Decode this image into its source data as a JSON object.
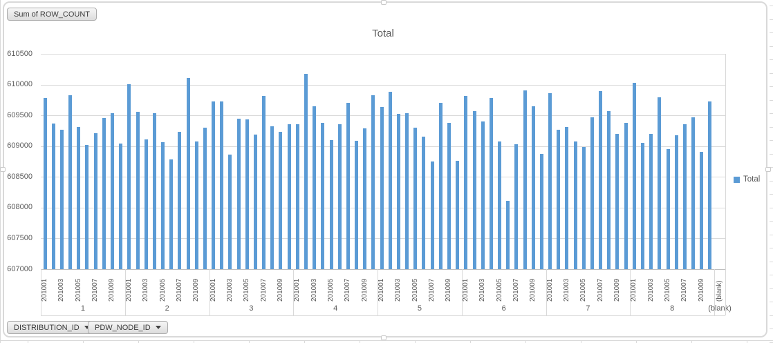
{
  "pivot": {
    "value_button": "Sum of ROW_COUNT",
    "axis_buttons": [
      "DISTRIBUTION_ID",
      "PDW_NODE_ID"
    ],
    "legend_label": "Total"
  },
  "colors": {
    "bar": "#5B9BD5",
    "text": "#595959",
    "gridline": "#D9D9D9",
    "axis_line": "#BFBFBF"
  },
  "chart_data": {
    "type": "bar",
    "title": "Total",
    "series_name": "Total",
    "legend_position": "right",
    "grid": true,
    "bar_color": "#5B9BD5",
    "ylim": [
      607000,
      610500
    ],
    "yticks": [
      607000,
      607500,
      608000,
      608500,
      609000,
      609500,
      610000,
      610500
    ],
    "x_axis_fields": [
      "DISTRIBUTION_ID",
      "PDW_NODE_ID"
    ],
    "categories": [
      "201001",
      "201002",
      "201003",
      "201004",
      "201005",
      "201006",
      "201007",
      "201008",
      "201009",
      "201010"
    ],
    "shown_category_ticks": [
      "201001",
      "201003",
      "201005",
      "201007",
      "201009"
    ],
    "groups": [
      {
        "label": "1",
        "values": [
          609780,
          609365,
          609270,
          609830,
          609310,
          609020,
          609210,
          609455,
          609540,
          609040
        ]
      },
      {
        "label": "2",
        "values": [
          610010,
          609555,
          609105,
          609535,
          609065,
          608780,
          609230,
          610105,
          609070,
          609295
        ]
      },
      {
        "label": "3",
        "values": [
          609730,
          609730,
          608865,
          609445,
          609430,
          609185,
          609820,
          609325,
          609230,
          609355
        ]
      },
      {
        "label": "4",
        "values": [
          609360,
          610175,
          609650,
          609380,
          609100,
          609360,
          609700,
          609085,
          609285,
          609830
        ]
      },
      {
        "label": "5",
        "values": [
          609640,
          609885,
          609525,
          609540,
          609300,
          609155,
          608745,
          609700,
          609375,
          608765
        ]
      },
      {
        "label": "6",
        "values": [
          609820,
          609570,
          609400,
          609780,
          609080,
          608110,
          609030,
          609905,
          609650,
          608870
        ]
      },
      {
        "label": "7",
        "values": [
          609865,
          609270,
          609315,
          609070,
          608985,
          609465,
          609895,
          609570,
          609195,
          609380
        ]
      },
      {
        "label": "8",
        "values": [
          610025,
          609050,
          609200,
          609790,
          608950,
          609175,
          609360,
          609465,
          608910,
          609725
        ]
      },
      {
        "label": "(blank)",
        "category": "(blank)",
        "values": []
      }
    ]
  }
}
